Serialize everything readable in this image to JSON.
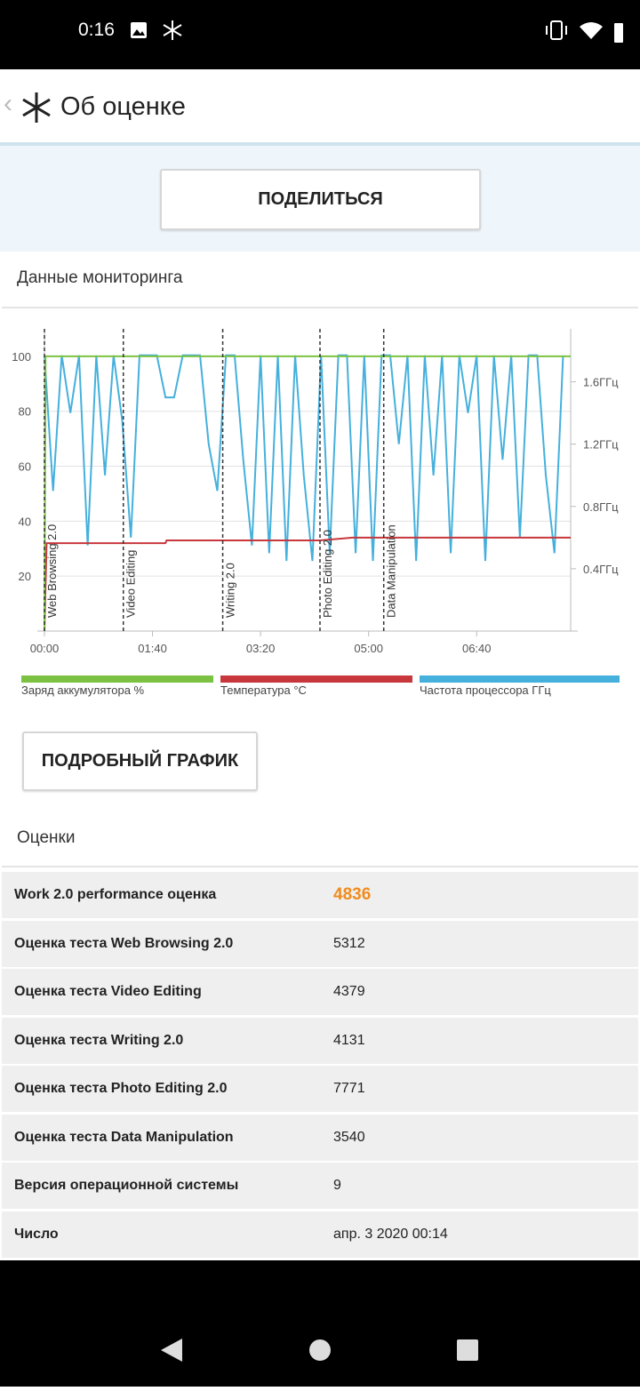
{
  "status_bar": {
    "time": "0:16"
  },
  "app_bar": {
    "title": "Об оценке"
  },
  "share_button": "ПОДЕЛИТЬСЯ",
  "monitoring_title": "Данные мониторинга",
  "chart_data": {
    "type": "line",
    "xlim": [
      0,
      487
    ],
    "xticks": [
      {
        "value": 0,
        "label": "00:00"
      },
      {
        "value": 100,
        "label": "01:40"
      },
      {
        "value": 200,
        "label": "03:20"
      },
      {
        "value": 300,
        "label": "05:00"
      },
      {
        "value": 400,
        "label": "06:40"
      }
    ],
    "ylim": [
      0,
      110
    ],
    "yticks": [
      20,
      40,
      60,
      80,
      100
    ],
    "y2lim": [
      0,
      1.94
    ],
    "y2ticks": [
      {
        "value": 0.4,
        "label": "0.4ГГц"
      },
      {
        "value": 0.8,
        "label": "0.8ГГц"
      },
      {
        "value": 1.2,
        "label": "1.2ГГц"
      },
      {
        "value": 1.6,
        "label": "1.6ГГц"
      }
    ],
    "grid": true,
    "phases": [
      {
        "label": "Web Browsing 2.0",
        "x": 0
      },
      {
        "label": "Video Editing",
        "x": 73
      },
      {
        "label": "Writing 2.0",
        "x": 165
      },
      {
        "label": "Photo Editing 2.0",
        "x": 255
      },
      {
        "label": "Data Manipulation",
        "x": 314
      }
    ],
    "series": [
      {
        "name": "Заряд аккумулятора %",
        "color": "#7cc242",
        "x": [
          0,
          1,
          487
        ],
        "values": [
          0,
          100,
          100
        ]
      },
      {
        "name": "Температура °C",
        "color": "#c8373c",
        "x": [
          0,
          2,
          112,
          113,
          255,
          285,
          487
        ],
        "values": [
          0,
          32,
          32,
          33,
          33,
          34,
          34
        ]
      },
      {
        "name": "Частота процессора ГГц",
        "color": "#45b0dc",
        "axis": "y2",
        "x": [
          0,
          8,
          16,
          24,
          32,
          40,
          48,
          56,
          64,
          72,
          80,
          88,
          96,
          104,
          112,
          120,
          128,
          136,
          144,
          152,
          160,
          168,
          176,
          184,
          192,
          200,
          208,
          216,
          224,
          232,
          240,
          248,
          256,
          264,
          272,
          280,
          288,
          296,
          304,
          312,
          320,
          328,
          336,
          344,
          352,
          360,
          368,
          376,
          384,
          392,
          400,
          408,
          416,
          424,
          432,
          440,
          448,
          456,
          464,
          472,
          480
        ],
        "values": [
          1.77,
          0.9,
          1.77,
          1.4,
          1.77,
          0.55,
          1.77,
          1.0,
          1.77,
          1.35,
          0.6,
          1.77,
          1.77,
          1.77,
          1.5,
          1.5,
          1.77,
          1.77,
          1.77,
          1.2,
          0.9,
          1.77,
          1.77,
          1.1,
          0.55,
          1.77,
          0.5,
          1.77,
          0.45,
          1.77,
          1.0,
          0.45,
          1.77,
          0.5,
          1.77,
          1.77,
          0.5,
          1.77,
          0.45,
          1.77,
          1.77,
          1.2,
          1.77,
          0.45,
          1.77,
          1.0,
          1.77,
          0.5,
          1.77,
          1.4,
          1.77,
          0.45,
          1.77,
          1.1,
          1.77,
          0.6,
          1.77,
          1.77,
          1.0,
          0.5,
          1.77
        ]
      }
    ]
  },
  "detail_button": "ПОДРОБНЫЙ ГРАФИК",
  "scores": {
    "title": "Оценки",
    "rows": [
      [
        "Work 2.0 performance оценка",
        4836
      ],
      [
        "Оценка теста Web Browsing 2.0",
        5312
      ],
      [
        "Оценка теста Video Editing",
        4379
      ],
      [
        "Оценка теста Writing 2.0",
        4131
      ],
      [
        "Оценка теста Photo Editing 2.0",
        7771
      ],
      [
        "Оценка теста Data Manipulation",
        3540
      ],
      [
        "Версия операционной системы",
        9
      ],
      [
        "Число",
        "апр. 3 2020 00:14"
      ]
    ]
  }
}
